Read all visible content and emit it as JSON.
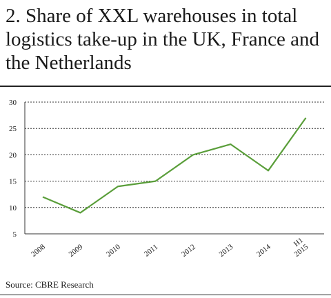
{
  "title": "2. Share of XXL warehouses in total logistics take-up in the UK, France and the Netherlands",
  "source": "Source: CBRE Research",
  "colors": {
    "line": "#5a9e3a",
    "grid": "#333333",
    "text": "#1a1a1a"
  },
  "chart_data": {
    "type": "line",
    "categories": [
      "2008",
      "2009",
      "2010",
      "2011",
      "2012",
      "2013",
      "2014",
      "H1 2015"
    ],
    "series": [
      {
        "values": [
          12,
          9,
          14,
          15,
          20,
          22,
          17,
          27
        ]
      }
    ],
    "yticks": [
      5,
      10,
      15,
      20,
      25,
      30
    ],
    "ylim": [
      5,
      30
    ],
    "grid": "horizontal dashed",
    "xlabel": "",
    "ylabel": ""
  }
}
